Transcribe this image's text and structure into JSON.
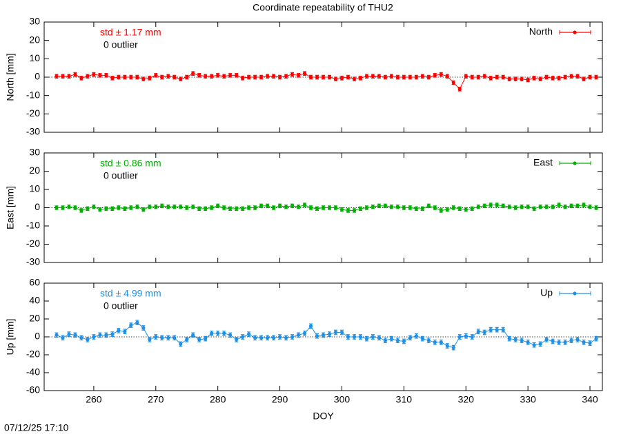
{
  "title": "Coordinate repeatability of THU2",
  "footer": "07/12/25 17:10",
  "chart_data": [
    {
      "type": "line",
      "ylabel": "North [mm]",
      "std_label": "std ± 1.17 mm",
      "outlier_label": "0 outlier",
      "xlim": [
        252,
        342
      ],
      "xticks": [
        260,
        270,
        280,
        290,
        300,
        310,
        320,
        330,
        340
      ],
      "ylim": [
        -30,
        30
      ],
      "yticks": [
        -30,
        -20,
        -10,
        0,
        10,
        20,
        30
      ],
      "x": [
        254,
        255,
        256,
        257,
        258,
        259,
        260,
        261,
        262,
        263,
        264,
        265,
        266,
        267,
        268,
        269,
        270,
        271,
        272,
        273,
        274,
        275,
        276,
        277,
        278,
        279,
        280,
        281,
        282,
        283,
        284,
        285,
        286,
        287,
        288,
        289,
        290,
        291,
        292,
        293,
        294,
        295,
        296,
        297,
        298,
        299,
        300,
        301,
        302,
        303,
        304,
        305,
        306,
        307,
        308,
        309,
        310,
        311,
        312,
        313,
        314,
        315,
        316,
        317,
        318,
        319,
        320,
        321,
        322,
        323,
        324,
        325,
        326,
        327,
        328,
        329,
        330,
        331,
        332,
        333,
        334,
        335,
        336,
        337,
        338,
        339,
        340,
        341
      ],
      "series": [
        {
          "name": "North",
          "color": "#ff0000",
          "error": 1,
          "values": [
            0.5,
            0.5,
            0.5,
            1.5,
            -0.5,
            0.5,
            1.5,
            1,
            1,
            -0.5,
            0,
            0,
            0,
            0,
            -1,
            -0.5,
            1,
            0,
            0.5,
            0,
            -1,
            0,
            2,
            1,
            0.5,
            0.5,
            1,
            0.5,
            1,
            1,
            -0.5,
            0,
            0,
            0,
            0.5,
            0.5,
            0,
            0.5,
            1.5,
            1,
            2,
            0,
            0,
            0,
            0,
            -1,
            -0.5,
            0,
            -1,
            -0.5,
            0.5,
            0.5,
            0.5,
            0,
            0.5,
            0,
            0,
            0,
            0,
            0.5,
            0,
            1,
            1.5,
            0.5,
            -3,
            -6.5,
            0.5,
            0,
            0,
            0.5,
            -0.5,
            0,
            0,
            -1,
            -1,
            -1,
            -1.5,
            -0.5,
            -1,
            0,
            -0.5,
            -0.5,
            0,
            0.5,
            0.5,
            -1,
            0,
            0
          ]
        }
      ]
    },
    {
      "type": "line",
      "ylabel": "East [mm]",
      "std_label": "std ± 0.86 mm",
      "outlier_label": "0 outlier",
      "xlim": [
        252,
        342
      ],
      "xticks": [
        260,
        270,
        280,
        290,
        300,
        310,
        320,
        330,
        340
      ],
      "ylim": [
        -30,
        30
      ],
      "yticks": [
        -30,
        -20,
        -10,
        0,
        10,
        20,
        30
      ],
      "x": [
        254,
        255,
        256,
        257,
        258,
        259,
        260,
        261,
        262,
        263,
        264,
        265,
        266,
        267,
        268,
        269,
        270,
        271,
        272,
        273,
        274,
        275,
        276,
        277,
        278,
        279,
        280,
        281,
        282,
        283,
        284,
        285,
        286,
        287,
        288,
        289,
        290,
        291,
        292,
        293,
        294,
        295,
        296,
        297,
        298,
        299,
        300,
        301,
        302,
        303,
        304,
        305,
        306,
        307,
        308,
        309,
        310,
        311,
        312,
        313,
        314,
        315,
        316,
        317,
        318,
        319,
        320,
        321,
        322,
        323,
        324,
        325,
        326,
        327,
        328,
        329,
        330,
        331,
        332,
        333,
        334,
        335,
        336,
        337,
        338,
        339,
        340,
        341
      ],
      "series": [
        {
          "name": "East",
          "color": "#00b000",
          "error": 1,
          "values": [
            0,
            0,
            0.5,
            0,
            -1.5,
            -0.5,
            0.5,
            -1,
            -0.5,
            -0.5,
            0,
            -0.5,
            0,
            0.5,
            -1,
            0.5,
            0.5,
            1,
            0.5,
            0.5,
            0.5,
            0,
            0.5,
            -0.5,
            -0.5,
            0,
            1,
            0,
            -0.5,
            -0.5,
            -0.5,
            0,
            0,
            1,
            1,
            0,
            1,
            0.5,
            1,
            0.5,
            1.5,
            0,
            -0.5,
            0,
            0,
            0,
            -1,
            -1.5,
            -1.5,
            -0.5,
            0,
            0.5,
            1,
            1,
            0.5,
            0.5,
            0,
            0,
            -0.5,
            -0.5,
            1,
            0,
            -1.5,
            -1,
            0,
            -0.5,
            -1,
            -0.5,
            0.5,
            1,
            1.5,
            1.5,
            1,
            0.5,
            0,
            0.5,
            0.5,
            -0.5,
            0.5,
            0.5,
            0.5,
            1.5,
            0.5,
            1,
            1,
            1.5,
            0.5,
            0
          ]
        }
      ]
    },
    {
      "type": "line",
      "ylabel": "Up [mm]",
      "std_label": "std ± 4.99 mm",
      "outlier_label": "0 outlier",
      "xlabel": "DOY",
      "xlim": [
        252,
        342
      ],
      "xticks": [
        260,
        270,
        280,
        290,
        300,
        310,
        320,
        330,
        340
      ],
      "ylim": [
        -60,
        60
      ],
      "yticks": [
        -60,
        -40,
        -20,
        0,
        20,
        40,
        60
      ],
      "x": [
        254,
        255,
        256,
        257,
        258,
        259,
        260,
        261,
        262,
        263,
        264,
        265,
        266,
        267,
        268,
        269,
        270,
        271,
        272,
        273,
        274,
        275,
        276,
        277,
        278,
        279,
        280,
        281,
        282,
        283,
        284,
        285,
        286,
        287,
        288,
        289,
        290,
        291,
        292,
        293,
        294,
        295,
        296,
        297,
        298,
        299,
        300,
        301,
        302,
        303,
        304,
        305,
        306,
        307,
        308,
        309,
        310,
        311,
        312,
        313,
        314,
        315,
        316,
        317,
        318,
        319,
        320,
        321,
        322,
        323,
        324,
        325,
        326,
        327,
        328,
        329,
        330,
        331,
        332,
        333,
        334,
        335,
        336,
        337,
        338,
        339,
        340,
        341
      ],
      "series": [
        {
          "name": "Up",
          "color": "#1e90e8",
          "error": 2.5,
          "values": [
            2,
            -1,
            3,
            2,
            -1,
            -3,
            0,
            2,
            2,
            3,
            7,
            6,
            13,
            16,
            10,
            -3,
            0,
            -1,
            -1,
            -1,
            -8,
            -3,
            2,
            -3,
            -2,
            4,
            4,
            4,
            2,
            -3,
            0,
            3,
            -1,
            -1,
            -1,
            -1,
            0,
            -1,
            0,
            2,
            4,
            12,
            1,
            2,
            3,
            5,
            5,
            0,
            0,
            0,
            -2,
            0,
            -1,
            -4,
            -2,
            -4,
            -5,
            -1,
            1,
            -2,
            -4,
            -6,
            -6,
            -10,
            -12,
            0,
            1,
            0,
            6,
            5,
            8,
            8,
            8,
            -2,
            -3,
            -4,
            -6,
            -9,
            -8,
            -3,
            -5,
            -6,
            -6,
            -4,
            -3,
            -6,
            -7,
            -2
          ]
        }
      ]
    }
  ]
}
